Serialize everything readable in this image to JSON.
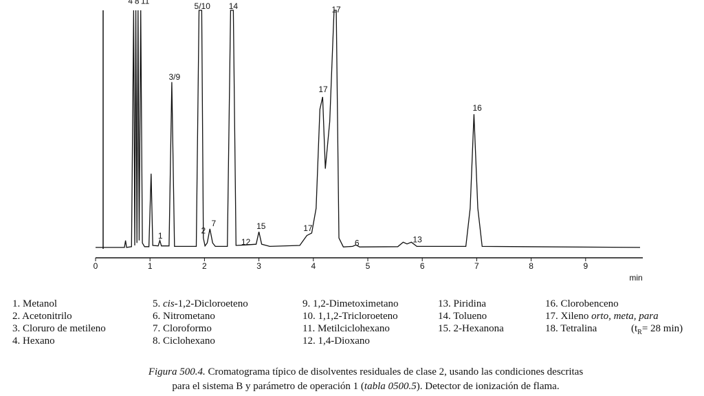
{
  "chart_data": {
    "type": "line",
    "x": [
      0,
      0.53,
      0.55,
      0.57,
      0.66,
      0.7,
      0.72,
      0.74,
      0.76,
      0.78,
      0.8,
      0.83,
      0.86,
      0.9,
      0.98,
      1.02,
      1.05,
      1.15,
      1.18,
      1.21,
      1.35,
      1.4,
      1.45,
      1.85,
      1.9,
      1.95,
      1.98,
      2.01,
      2.05,
      2.1,
      2.15,
      2.2,
      2.42,
      2.48,
      2.53,
      2.58,
      2.75,
      2.95,
      3.0,
      3.05,
      3.2,
      3.75,
      3.88,
      3.97,
      4.05,
      4.12,
      4.17,
      4.22,
      4.3,
      4.38,
      4.42,
      4.47,
      4.55,
      4.72,
      4.78,
      4.85,
      5.55,
      5.65,
      5.72,
      5.8,
      5.9,
      6.8,
      6.88,
      6.95,
      7.02,
      7.1,
      10
    ],
    "values": [
      4.2,
      4.2,
      7,
      4.2,
      4.5,
      100,
      5,
      100,
      6,
      100,
      7,
      100,
      6,
      4.5,
      4.5,
      34,
      5,
      4.8,
      7,
      4.8,
      4.8,
      71,
      4.6,
      4.6,
      100,
      100,
      8,
      4.8,
      6,
      11.7,
      6,
      4.6,
      4.6,
      100,
      100,
      5,
      5.2,
      5.5,
      10.5,
      5.5,
      4.6,
      5,
      9,
      10,
      20,
      60,
      65,
      36,
      55,
      100,
      100,
      8,
      4.4,
      4.6,
      5.2,
      4.4,
      4.5,
      6.3,
      5.6,
      6.3,
      4.6,
      4.6,
      20,
      58,
      20,
      4.6,
      4.2
    ],
    "color": "#111111",
    "xlim": [
      0,
      10
    ],
    "ylim": [
      0,
      100
    ],
    "xticks": [
      0,
      1,
      2,
      3,
      4,
      5,
      6,
      7,
      8,
      9
    ],
    "xlabel": "min",
    "annotations": [
      {
        "label": "4",
        "x": 0.64,
        "y": 103.5
      },
      {
        "label": "8",
        "x": 0.76,
        "y": 103.5
      },
      {
        "label": "11",
        "x": 0.91,
        "y": 103.5
      },
      {
        "label": "1",
        "x": 1.19,
        "y": 8.6
      },
      {
        "label": "3/9",
        "x": 1.45,
        "y": 72.8
      },
      {
        "label": "5/10",
        "x": 1.96,
        "y": 101.4
      },
      {
        "label": "14",
        "x": 2.53,
        "y": 101.4
      },
      {
        "label": "2",
        "x": 1.98,
        "y": 10.8
      },
      {
        "label": "7",
        "x": 2.17,
        "y": 13.6
      },
      {
        "label": "12",
        "x": 2.76,
        "y": 6.1
      },
      {
        "label": "15",
        "x": 3.04,
        "y": 12.5
      },
      {
        "label": "17",
        "x": 3.9,
        "y": 11.7
      },
      {
        "label": "17",
        "x": 4.18,
        "y": 67.8
      },
      {
        "label": "17",
        "x": 4.42,
        "y": 100
      },
      {
        "label": "6",
        "x": 4.8,
        "y": 5.8
      },
      {
        "label": "13",
        "x": 5.91,
        "y": 7.2
      },
      {
        "label": "16",
        "x": 7.01,
        "y": 60.3
      }
    ]
  },
  "legend_columns": [
    [
      [
        "1. Metanol"
      ],
      [
        "2. Acetonitrilo"
      ],
      [
        "3. Cloruro de metileno"
      ],
      [
        "4. Hexano"
      ]
    ],
    [
      [
        "5. ",
        "cis",
        "-1,2-Dicloroeteno"
      ],
      [
        "6. Nitrometano"
      ],
      [
        "7. Cloroformo"
      ],
      [
        "8. Ciclohexano"
      ]
    ],
    [
      [
        "9. 1,2-Dimetoximetano"
      ],
      [
        "10. 1,1,2-Tricloroeteno"
      ],
      [
        "11. Metilciclohexano"
      ],
      [
        "12. 1,4-Dioxano"
      ]
    ],
    [
      [
        "13. Piridina"
      ],
      [
        "14. Tolueno"
      ],
      [
        "15. 2-Hexanona"
      ]
    ],
    [
      [
        "16. Clorobenceno"
      ],
      [
        "17. Xileno ",
        "orto, meta, para"
      ],
      [
        "18. Tetralina"
      ]
    ]
  ],
  "retention_note": [
    "(t",
    "R",
    "= 28 min)"
  ],
  "caption": [
    [
      "",
      "Figura 500.4.",
      " Cromatograma típico de disolventes residuales de clase 2, usando las condiciones descritas"
    ],
    [
      "para el sistema B  y parámetro de operación 1 (",
      "tabla 0500.5",
      "). Detector de ionización de flama."
    ]
  ]
}
